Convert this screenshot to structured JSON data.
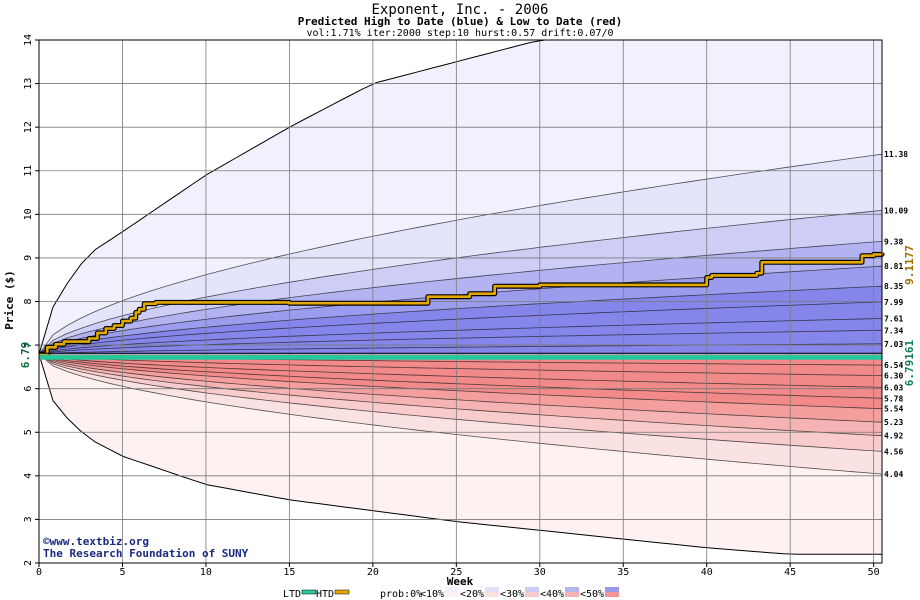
{
  "chart_data": {
    "type": "area",
    "title": "Exponent, Inc. - 2006",
    "subtitle": "Predicted High to Date (blue) &  Low to Date (red)",
    "params": "vol:1.71% iter:2000 step:10 hurst:0.57 drift:0.07/0",
    "xlabel": "Week",
    "ylabel": "Price ($)",
    "xlim": [
      0,
      50.5
    ],
    "ylim": [
      2,
      14
    ],
    "xticks": [
      "0",
      "5",
      "10",
      "15",
      "20",
      "25",
      "30",
      "35",
      "40",
      "45",
      "50"
    ],
    "yticks": [
      "2",
      "3",
      "4",
      "5",
      "6",
      "7",
      "8",
      "9",
      "10",
      "11",
      "12",
      "13",
      "14"
    ],
    "grid": true,
    "start_price": 6.79,
    "start_price_label": "6.79",
    "high_to_date_last": 9.1177,
    "high_to_date_label": "9.1177",
    "low_to_date_last": 6.79161,
    "low_to_date_label": "6.79161",
    "band_end_labels": [
      "11.38",
      "10.09",
      "9.38",
      "8.81",
      "8.35",
      "7.99",
      "7.61",
      "7.34",
      "7.03",
      "6.54",
      "6.30",
      "6.03",
      "5.78",
      "5.54",
      "5.23",
      "4.92",
      "4.56",
      "4.04"
    ],
    "upper_bands": [
      {
        "name": "<10%",
        "color": "#e4e4fb",
        "end": 11.38
      },
      {
        "name": "<20%",
        "color": "#cdcdf6",
        "end": 10.09
      },
      {
        "name": "<30%",
        "color": "#b3b3f1",
        "end": 9.38
      },
      {
        "name": "<40%",
        "color": "#9c9cee",
        "end": 8.81
      },
      {
        "name": "<50%",
        "color": "#8585ea",
        "end": 8.35
      }
    ],
    "lower_bands": [
      {
        "name": "<10%",
        "color": "#fbe2e2",
        "end": 4.04
      },
      {
        "name": "<20%",
        "color": "#f8cccc",
        "end": 4.56
      },
      {
        "name": "<30%",
        "color": "#f6b3b3",
        "end": 4.92
      },
      {
        "name": "<40%",
        "color": "#f49e9e",
        "end": 5.23
      },
      {
        "name": "<50%",
        "color": "#f28a8a",
        "end": 5.54
      }
    ],
    "envelope_upper": {
      "x": [
        0,
        0.5,
        1,
        2,
        3,
        5,
        10,
        15,
        20,
        25,
        30,
        35,
        40,
        45,
        50
      ],
      "y": [
        6.79,
        7.6,
        8.0,
        8.6,
        9.1,
        9.6,
        10.9,
        12.0,
        13.0,
        13.5,
        14,
        14,
        14,
        14,
        14
      ]
    },
    "envelope_lower": {
      "x": [
        0,
        0.5,
        1,
        2,
        3,
        5,
        10,
        15,
        20,
        25,
        30,
        35,
        40,
        45,
        50
      ],
      "y": [
        6.79,
        6.0,
        5.6,
        5.2,
        4.85,
        4.45,
        3.8,
        3.45,
        3.2,
        2.95,
        2.75,
        2.55,
        2.35,
        2.2,
        2.2
      ]
    },
    "series": [
      {
        "name": "HTD",
        "color": "#e3a800",
        "x": [
          0,
          0.5,
          1,
          1.5,
          3,
          3.5,
          4,
          4.5,
          5,
          5.5,
          5.8,
          6,
          6.3,
          7,
          12,
          15,
          20,
          23,
          23.3,
          25.5,
          25.8,
          27,
          27.3,
          30,
          35,
          39.7,
          40,
          40.3,
          42.5,
          43,
          43.3,
          48,
          49,
          49.3,
          50,
          50.5
        ],
        "y": [
          6.79,
          6.95,
          7.02,
          7.08,
          7.15,
          7.28,
          7.38,
          7.45,
          7.55,
          7.62,
          7.75,
          7.82,
          7.95,
          7.98,
          7.98,
          7.96,
          7.96,
          7.96,
          8.11,
          8.11,
          8.18,
          8.18,
          8.35,
          8.38,
          8.38,
          8.38,
          8.55,
          8.6,
          8.6,
          8.65,
          8.9,
          8.9,
          8.9,
          9.05,
          9.08,
          9.1177
        ]
      },
      {
        "name": "LTD",
        "color": "#28c89a",
        "x": [
          0,
          50.5
        ],
        "y": [
          6.79,
          6.79161
        ]
      }
    ],
    "legend": {
      "items": [
        "LTD",
        "HTD",
        "prob:0%",
        "<10%",
        "<20%",
        "<30%",
        "<40%",
        "<50%"
      ],
      "colors": [
        "#28c89a",
        "#e3a800",
        "#ffffff",
        "#f1f1fd",
        "#e0e0f8",
        "#cbcbf4",
        "#b5b5f0",
        "#9a9aeb"
      ],
      "red_colors": [
        "#ffffff",
        "#fdf2f2",
        "#fbe0e0",
        "#f9caca",
        "#f6b2b2",
        "#f39696"
      ],
      "placement": "bottom"
    },
    "watermark": [
      "©www.textbiz.org",
      "The Research Foundation of SUNY"
    ]
  }
}
